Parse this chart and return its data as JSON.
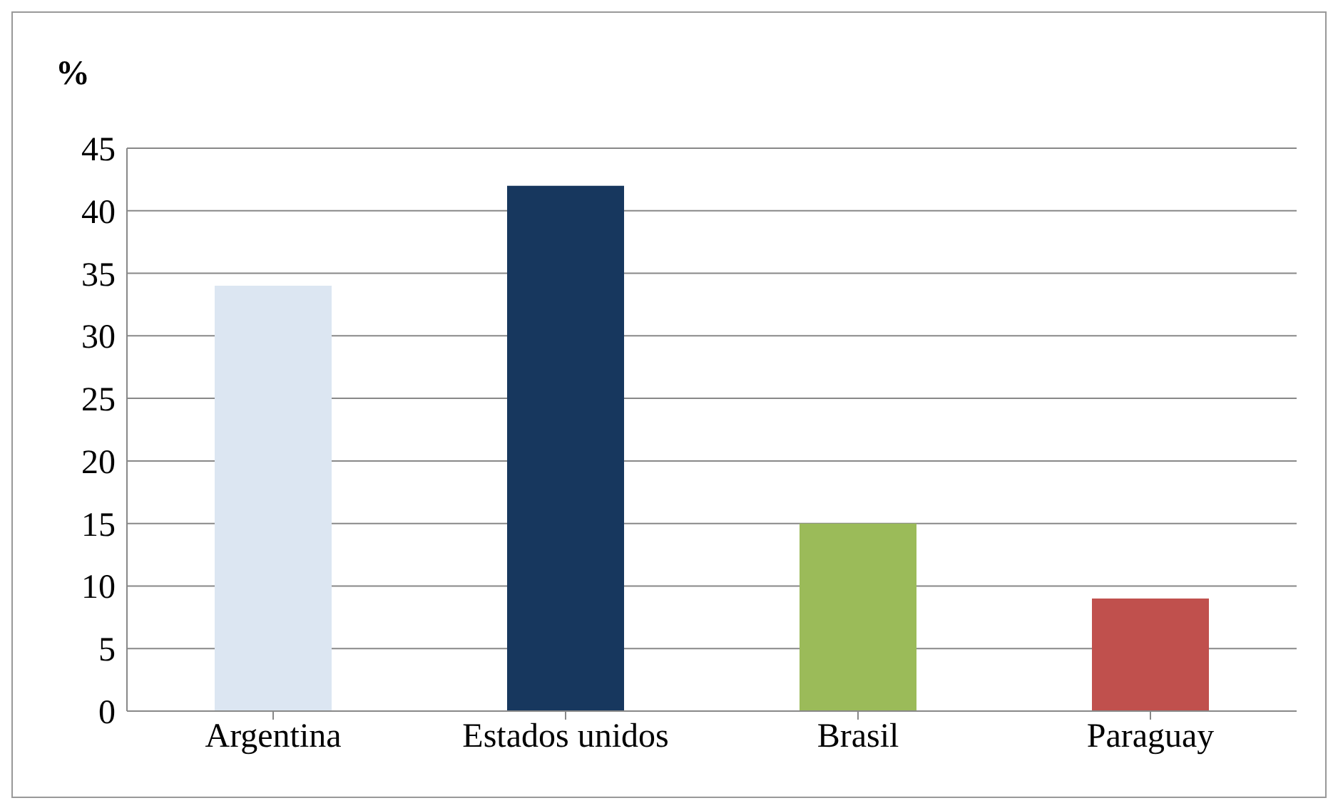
{
  "chart_data": {
    "type": "bar",
    "ylabel": "%",
    "categories": [
      "Argentina",
      "Estados unidos",
      "Brasil",
      "Paraguay"
    ],
    "values": [
      34,
      42,
      15,
      9
    ],
    "colors": [
      "#dce6f2",
      "#17375e",
      "#9bbb59",
      "#c0504d"
    ],
    "ylim": [
      0,
      45
    ],
    "yticks": [
      0,
      5,
      10,
      15,
      20,
      25,
      30,
      35,
      40,
      45
    ],
    "grid": "y"
  }
}
